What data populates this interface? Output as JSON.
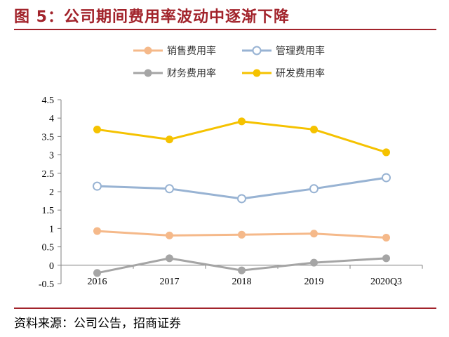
{
  "figure": {
    "title": "图 5：公司期间费用率波动中逐渐下降",
    "source": "资料来源：公司公告，招商证券"
  },
  "chart_data": {
    "type": "line",
    "categories": [
      "2016",
      "2017",
      "2018",
      "2019",
      "2020Q3"
    ],
    "series": [
      {
        "name": "销售费用率",
        "color": "#f5b98a",
        "marker": "filled",
        "values": [
          0.93,
          0.81,
          0.83,
          0.86,
          0.75
        ]
      },
      {
        "name": "管理费用率",
        "color": "#98b3d3",
        "marker": "hollow",
        "values": [
          2.15,
          2.08,
          1.81,
          2.08,
          2.38
        ]
      },
      {
        "name": "财务费用率",
        "color": "#a5a5a5",
        "marker": "filled",
        "values": [
          -0.21,
          0.19,
          -0.14,
          0.07,
          0.19
        ]
      },
      {
        "name": "研发费用率",
        "color": "#f5c200",
        "marker": "filled",
        "values": [
          3.69,
          3.42,
          3.91,
          3.69,
          3.07
        ]
      }
    ],
    "ylim": [
      -0.5,
      4.5
    ],
    "yticks": [
      "-0.5",
      "0",
      "0.5",
      "1",
      "1.5",
      "2",
      "2.5",
      "3",
      "3.5",
      "4",
      "4.5"
    ],
    "xlabel": "",
    "ylabel": "",
    "grid": false,
    "legend": "top"
  }
}
